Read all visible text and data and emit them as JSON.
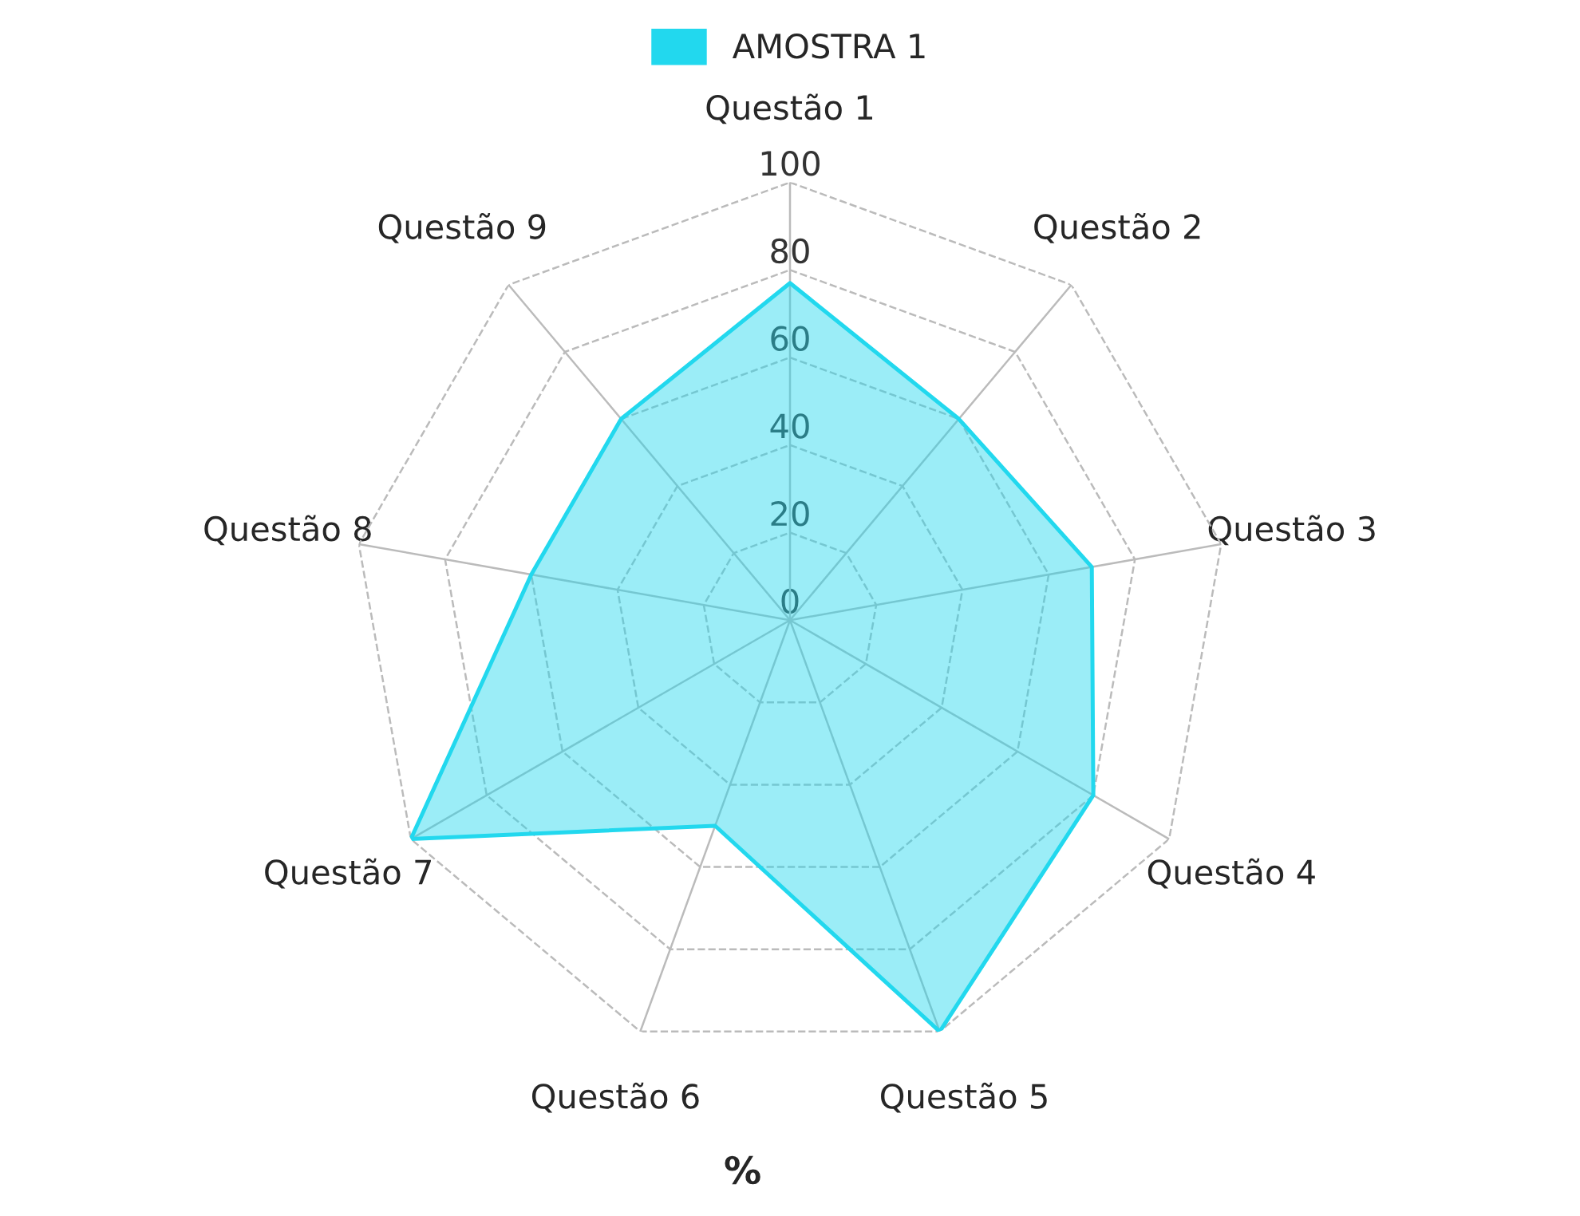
{
  "chart_data": {
    "type": "radar",
    "xlabel": "%",
    "categories": [
      "Questão 1",
      "Questão 2",
      "Questão 3",
      "Questão 4",
      "Questão 5",
      "Questão 6",
      "Questão 7",
      "Questão 8",
      "Questão 9"
    ],
    "series": [
      {
        "name": "AMOSTRA 1",
        "color": "#22d8ee",
        "values": [
          77,
          60,
          70,
          80,
          100,
          50,
          100,
          60,
          60
        ]
      }
    ],
    "ylim": [
      0,
      100
    ],
    "yticks": [
      0,
      20,
      40,
      60,
      80,
      100
    ],
    "grid": true,
    "legend": "top"
  }
}
